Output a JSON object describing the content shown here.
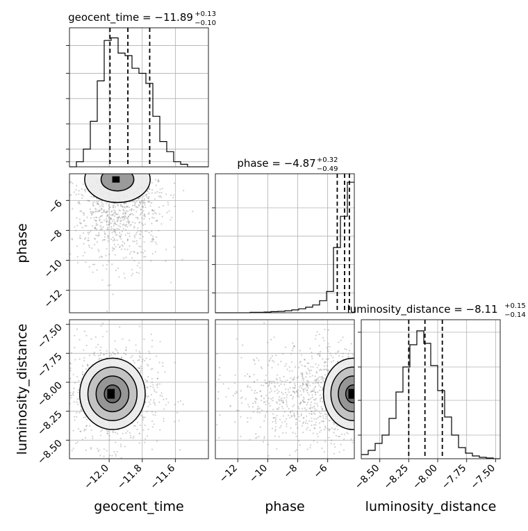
{
  "chart_data": {
    "type": "corner",
    "parameters": [
      "geocent_time",
      "phase",
      "luminosity_distance"
    ],
    "axis_labels": {
      "geocent_time": "geocent_time",
      "phase": "phase",
      "luminosity_distance": "luminosity_distance"
    },
    "ranges": {
      "geocent_time": [
        -12.24,
        -11.4
      ],
      "phase": [
        -13.5,
        -4.22
      ],
      "luminosity_distance": [
        -8.66,
        -7.46
      ]
    },
    "grid": true,
    "marginals": [
      {
        "param": "geocent_time",
        "title": {
          "prefix": "geocent_time = ",
          "value": "−11.89",
          "plus": "+0.13",
          "minus": "−0.10"
        },
        "quantiles": [
          -11.995,
          -11.887,
          -11.755
        ],
        "hist_edges": [
          -12.24,
          -12.198,
          -12.156,
          -12.114,
          -12.072,
          -12.03,
          -11.988,
          -11.946,
          -11.904,
          -11.862,
          -11.82,
          -11.778,
          -11.736,
          -11.694,
          -11.652,
          -11.61,
          -11.568,
          -11.526,
          -11.484,
          -11.442,
          -11.4
        ],
        "hist_counts": [
          0,
          2,
          7,
          18,
          34,
          50,
          51,
          45,
          44,
          39,
          37,
          33,
          20,
          10,
          6,
          2,
          1,
          0,
          0,
          0
        ],
        "y_ticks": [
          2,
          7,
          17,
          27,
          37,
          48
        ],
        "y_max": 55
      },
      {
        "param": "phase",
        "title": {
          "prefix": "phase = ",
          "value": "−4.87",
          "plus": "+0.32",
          "minus": "−0.49"
        },
        "quantiles": [
          -5.36,
          -4.87,
          -4.55
        ],
        "hist_edges": [
          -13.5,
          -13.036,
          -12.572,
          -12.108,
          -11.644,
          -11.18,
          -10.716,
          -10.252,
          -9.788,
          -9.324,
          -8.86,
          -8.396,
          -7.932,
          -7.468,
          -7.004,
          -6.54,
          -6.076,
          -5.612,
          -5.148,
          -4.684,
          -4.22
        ],
        "hist_counts": [
          0,
          0,
          0,
          0,
          0,
          0.3,
          0.3,
          0.5,
          0.8,
          1.0,
          1.4,
          2.0,
          2.8,
          3.9,
          5.5,
          8.5,
          15,
          46,
          68,
          92
        ],
        "y_ticks": [
          14,
          34,
          54,
          74
        ],
        "y_max": 98
      },
      {
        "param": "luminosity_distance",
        "title": {
          "prefix": "luminosity_distance = ",
          "value": "−8.11",
          "plus": "+0.15",
          "minus": "−0.14"
        },
        "quantiles": [
          -8.25,
          -8.11,
          -7.96
        ],
        "hist_edges": [
          -8.66,
          -8.6,
          -8.54,
          -8.48,
          -8.42,
          -8.36,
          -8.3,
          -8.24,
          -8.18,
          -8.12,
          -8.06,
          -8.0,
          -7.94,
          -7.88,
          -7.82,
          -7.76,
          -7.7,
          -7.64,
          -7.58,
          -7.52,
          -7.46
        ],
        "hist_counts": [
          3,
          6,
          11,
          17,
          29,
          48,
          66,
          82,
          92,
          83,
          67,
          49,
          30,
          17,
          8,
          4,
          2,
          1,
          0.5,
          0
        ],
        "y_ticks": [
          17,
          42,
          66,
          91
        ],
        "y_max": 100
      }
    ],
    "panels_2d": [
      {
        "x": "geocent_time",
        "y": "phase",
        "mode": {
          "x": -11.95,
          "y": -4.6
        },
        "contour_levels": 2
      },
      {
        "x": "geocent_time",
        "y": "luminosity_distance",
        "mode": {
          "x": -11.98,
          "y": -8.1
        },
        "contour_levels": 4
      },
      {
        "x": "phase",
        "y": "luminosity_distance",
        "mode": {
          "x": -4.3,
          "y": -8.1
        },
        "contour_levels": 4
      }
    ],
    "ticks": {
      "geocent_time": {
        "values": [
          -12.0,
          -11.8,
          -11.6
        ],
        "labels": [
          "−12.0",
          "−11.8",
          "−11.6"
        ]
      },
      "phase": {
        "values": [
          -12,
          -10,
          -8,
          -6
        ],
        "labels": [
          "−12",
          "−10",
          "−8",
          "−6"
        ]
      },
      "luminosity_distance": {
        "values": [
          -8.5,
          -8.25,
          -8.0,
          -7.75,
          -7.5
        ],
        "labels": [
          "−8.50",
          "−8.25",
          "−8.00",
          "−7.75",
          "−7.50"
        ]
      }
    }
  }
}
